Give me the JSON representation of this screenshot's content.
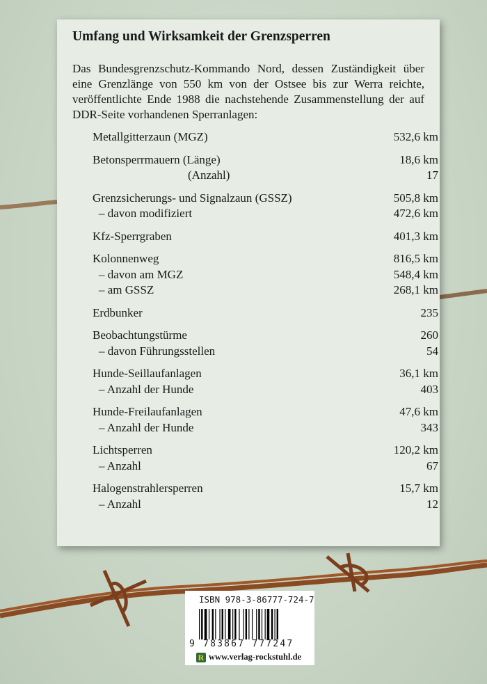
{
  "title": "Umfang und Wirksamkeit der Grenzsperren",
  "intro": "Das Bundesgrenzschutz-Kommando Nord, dessen Zuständigkeit über eine Grenzlänge von 550 km von der Ostsee bis zur Werra reichte, veröffentlichte Ende 1988 die nachstehende Zusammenstellung der auf DDR-Seite vorhandenen Sperranlagen:",
  "groups": [
    [
      {
        "label": "Metallgitterzaun (MGZ)",
        "value": "532,6 km"
      }
    ],
    [
      {
        "label": "Betonsperrmauern (Länge)",
        "value": "18,6 km"
      },
      {
        "label": "(Anzahl)",
        "value": "17"
      }
    ],
    [
      {
        "label": "Grenzsicherungs- und Signalzaun (GSSZ)",
        "value": "505,8 km"
      },
      {
        "label": "– davon modifiziert",
        "value": "472,6 km"
      }
    ],
    [
      {
        "label": "Kfz-Sperrgraben",
        "value": "401,3 km"
      }
    ],
    [
      {
        "label": "Kolonnenweg",
        "value": "816,5 km"
      },
      {
        "label": "– davon am MGZ",
        "value": "548,4 km"
      },
      {
        "label": "– am GSSZ",
        "value": "268,1 km"
      }
    ],
    [
      {
        "label": "Erdbunker",
        "value": "235"
      }
    ],
    [
      {
        "label": "Beobachtungstürme",
        "value": "260"
      },
      {
        "label": "– davon Führungsstellen",
        "value": "54"
      }
    ],
    [
      {
        "label": "Hunde-Seillaufanlagen",
        "value": "36,1 km"
      },
      {
        "label": "– Anzahl der Hunde",
        "value": "403"
      }
    ],
    [
      {
        "label": "Hunde-Freilaufanlagen",
        "value": "47,6 km"
      },
      {
        "label": "– Anzahl der Hunde",
        "value": "343"
      }
    ],
    [
      {
        "label": "Lichtsperren",
        "value": "120,2 km"
      },
      {
        "label": "– Anzahl",
        "value": "67"
      }
    ],
    [
      {
        "label": "Halogenstrahlersperren",
        "value": "15,7 km"
      },
      {
        "label": "– Anzahl",
        "value": "12"
      }
    ]
  ],
  "barcode": {
    "isbn": "ISBN 978-3-86777-724-7",
    "digits": "9 783867 777247",
    "url": "www.verlag-rockstuhl.de",
    "logo": "R"
  },
  "colors": {
    "background": "#cbd8c8",
    "panel": "#e7ede4",
    "wire": "#8a4a22"
  }
}
